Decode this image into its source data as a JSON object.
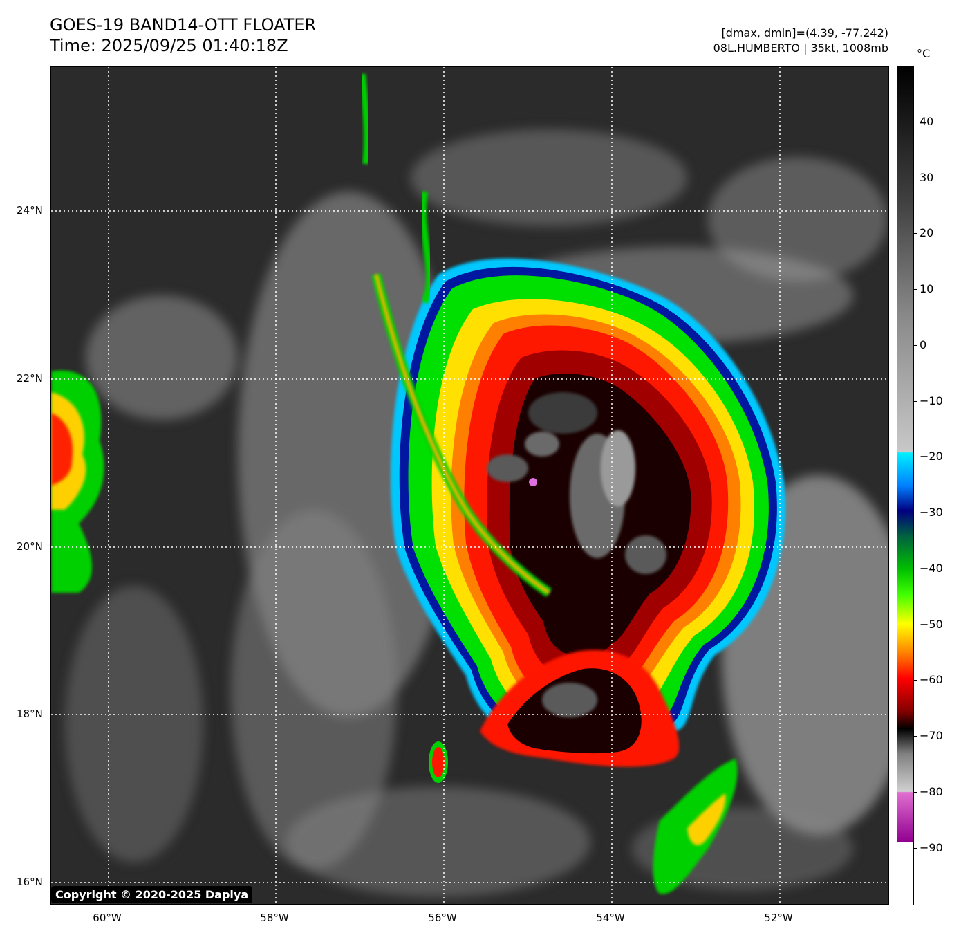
{
  "header": {
    "title": "GOES-19 BAND14-OTT FLOATER",
    "time": "Time: 2025/09/25 01:40:18Z",
    "range_info": "[dmax, dmin]=(4.39, -77.242)",
    "storm_info": "08L.HUMBERTO | 35kt, 1008mb"
  },
  "map": {
    "lat_labels": [
      "24°N",
      "22°N",
      "20°N",
      "18°N",
      "16°N"
    ],
    "lon_labels": [
      "60°W",
      "58°W",
      "56°W",
      "54°W",
      "52°W"
    ],
    "copyright": "Copyright © 2020-2025 Dapiya"
  },
  "colorbar": {
    "unit": "°C",
    "labels": [
      "40",
      "30",
      "20",
      "10",
      "0",
      "−10",
      "−20",
      "−30",
      "−40",
      "−50",
      "−60",
      "−70",
      "−80",
      "−90"
    ]
  }
}
